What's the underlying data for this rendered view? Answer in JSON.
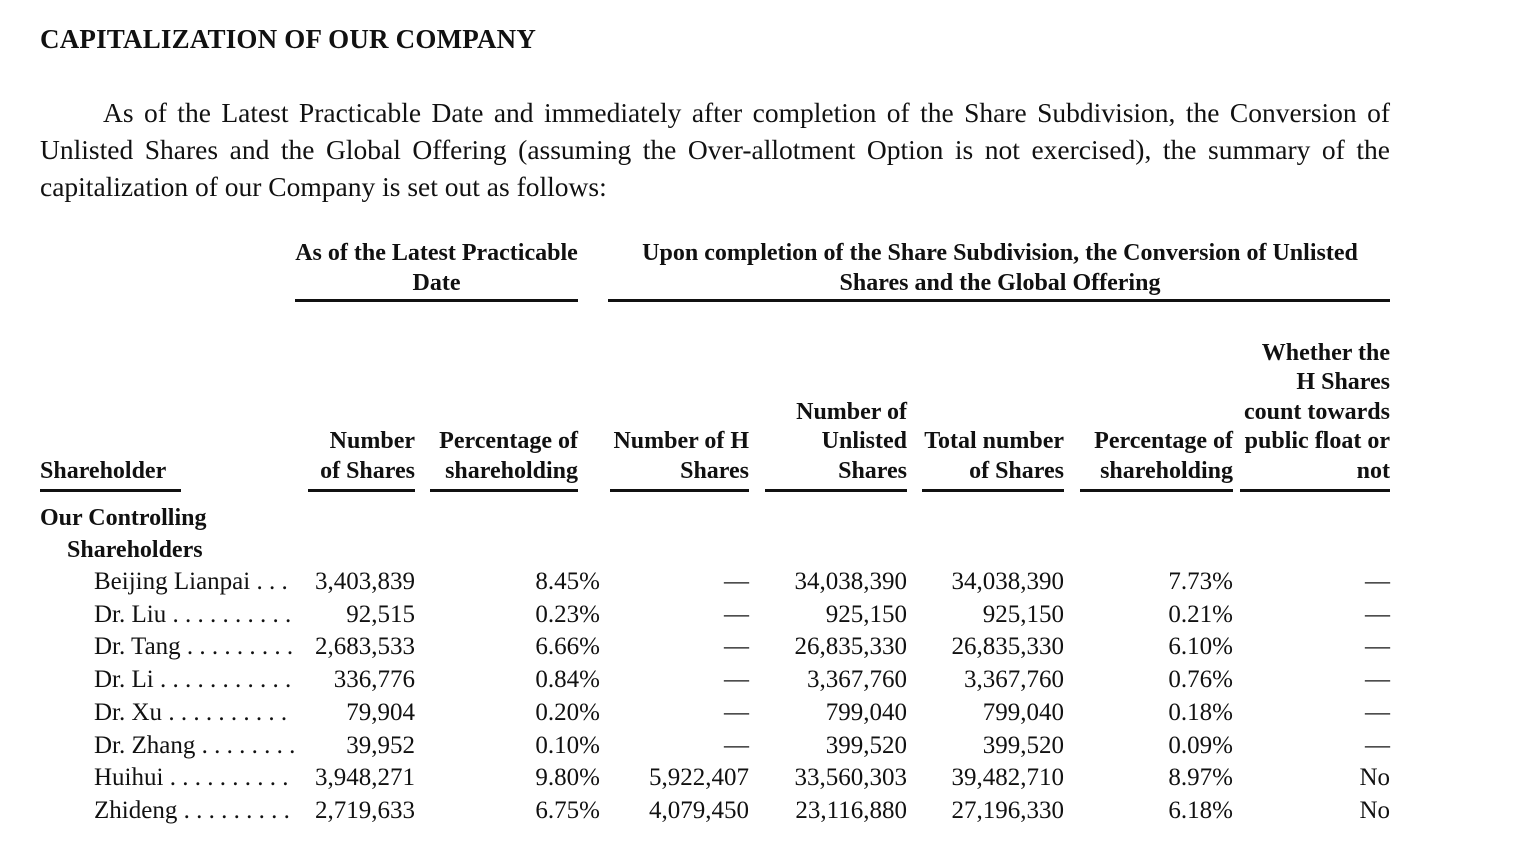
{
  "title": "CAPITALIZATION OF OUR COMPANY",
  "intro": "As of the Latest Practicable Date and immediately after completion of the Share Subdivision, the Conversion of Unlisted Shares and the Global Offering (assuming the Over-allotment Option is not exercised), the summary of the capitalization of our Company is set out as follows:",
  "table": {
    "group_headers": [
      "As of the Latest Practicable Date",
      "Upon completion of the Share Subdivision, the Conversion of Unlisted Shares and the Global Offering"
    ],
    "columns": [
      "Shareholder",
      "Number of Shares",
      "Percentage of shareholding",
      "Number of H Shares",
      "Number of Unlisted Shares",
      "Total number of Shares",
      "Percentage of shareholding",
      "Whether the H Shares count towards public float or not"
    ],
    "section_label": "Our Controlling Shareholders",
    "rows": [
      {
        "name": "Beijing Lianpai",
        "cells": [
          "3,403,839",
          "8.45%",
          "—",
          "34,038,390",
          "34,038,390",
          "7.73%",
          "—"
        ]
      },
      {
        "name": "Dr. Liu",
        "cells": [
          "92,515",
          "0.23%",
          "—",
          "925,150",
          "925,150",
          "0.21%",
          "—"
        ]
      },
      {
        "name": "Dr. Tang",
        "cells": [
          "2,683,533",
          "6.66%",
          "—",
          "26,835,330",
          "26,835,330",
          "6.10%",
          "—"
        ]
      },
      {
        "name": "Dr. Li",
        "cells": [
          "336,776",
          "0.84%",
          "—",
          "3,367,760",
          "3,367,760",
          "0.76%",
          "—"
        ]
      },
      {
        "name": "Dr. Xu",
        "cells": [
          "79,904",
          "0.20%",
          "—",
          "799,040",
          "799,040",
          "0.18%",
          "—"
        ]
      },
      {
        "name": "Dr. Zhang",
        "cells": [
          "39,952",
          "0.10%",
          "—",
          "399,520",
          "399,520",
          "0.09%",
          "—"
        ]
      },
      {
        "name": "Huihui",
        "cells": [
          "3,948,271",
          "9.80%",
          "5,922,407",
          "33,560,303",
          "39,482,710",
          "8.97%",
          "No"
        ]
      },
      {
        "name": "Zhideng",
        "cells": [
          "2,719,633",
          "6.75%",
          "4,079,450",
          "23,116,880",
          "27,196,330",
          "6.18%",
          "No"
        ]
      }
    ]
  }
}
